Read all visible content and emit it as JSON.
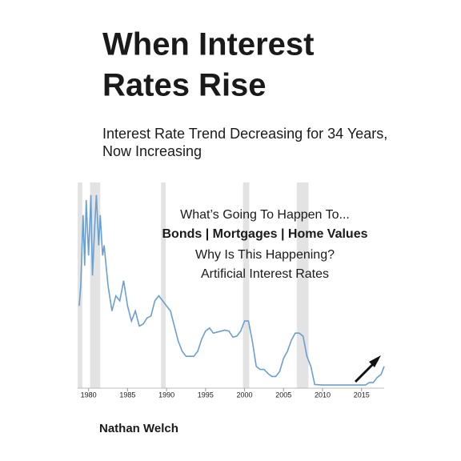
{
  "cover": {
    "title": [
      "When Interest",
      "Rates Rise"
    ],
    "subtitle": [
      "Interest Rate Trend Decreasing for 34 Years,",
      "Now Increasing"
    ],
    "overlay": [
      "What’s Going To Happen To...",
      "Bonds | Mortgages | Home Values",
      "Why Is This Happening?",
      "Artificial Interest Rates"
    ],
    "author": "Nathan Welch"
  },
  "chart_data": {
    "type": "line",
    "x": [
      1978.8,
      1979.0,
      1979.3,
      1979.5,
      1979.7,
      1980.0,
      1980.3,
      1980.5,
      1980.8,
      1981.0,
      1981.3,
      1981.5,
      1981.8,
      1982.0,
      1982.5,
      1983.0,
      1983.5,
      1984.0,
      1984.5,
      1985.0,
      1985.5,
      1986.0,
      1986.5,
      1987.0,
      1987.5,
      1988.0,
      1988.5,
      1989.0,
      1989.5,
      1990.0,
      1990.5,
      1991.0,
      1991.5,
      1992.0,
      1992.5,
      1993.0,
      1993.5,
      1994.0,
      1994.5,
      1995.0,
      1995.5,
      1996.0,
      1996.5,
      1997.0,
      1997.5,
      1998.0,
      1998.5,
      1999.0,
      1999.5,
      2000.0,
      2000.5,
      2001.0,
      2001.5,
      2002.0,
      2002.5,
      2003.0,
      2003.5,
      2004.0,
      2004.5,
      2005.0,
      2005.5,
      2006.0,
      2006.5,
      2007.0,
      2007.5,
      2008.0,
      2008.5,
      2009.0,
      2010.0,
      2011.0,
      2012.0,
      2013.0,
      2014.0,
      2015.0,
      2015.5,
      2016.0,
      2016.5,
      2017.0,
      2017.5,
      2017.9
    ],
    "series": [
      {
        "color": "#6a9fd0",
        "values": [
          8,
          10,
          17,
          12,
          18.5,
          13,
          19,
          11,
          16,
          19,
          14,
          17,
          13,
          14,
          10,
          7.5,
          9,
          8.5,
          10.5,
          8,
          6.5,
          7.5,
          6,
          6.2,
          6.8,
          7,
          8.5,
          9,
          8.5,
          8,
          7.5,
          6,
          4.5,
          3.5,
          3,
          3,
          3,
          3.5,
          4.7,
          5.5,
          5.8,
          5.3,
          5.4,
          5.5,
          5.6,
          5.5,
          4.9,
          5,
          5.5,
          6.5,
          6.5,
          4.5,
          2,
          1.7,
          1.7,
          1.3,
          1,
          1,
          1.5,
          2.8,
          3.5,
          4.6,
          5.3,
          5.3,
          5,
          3,
          2,
          0.2,
          0.15,
          0.15,
          0.15,
          0.15,
          0.15,
          0.15,
          0.15,
          0.4,
          0.4,
          0.9,
          1.2,
          2
        ]
      }
    ],
    "shaded_ranges": [
      [
        1978.6,
        1979.2
      ],
      [
        1980.2,
        1981.5
      ],
      [
        1989.3,
        1989.9
      ],
      [
        1999.8,
        2000.6
      ],
      [
        2006.7,
        2008.2
      ]
    ],
    "xlim": [
      1978.6,
      2017.9
    ],
    "xticks": [
      1980,
      1985,
      1990,
      1995,
      2000,
      2005,
      2010,
      2015
    ],
    "ylim": [
      0,
      20
    ]
  }
}
